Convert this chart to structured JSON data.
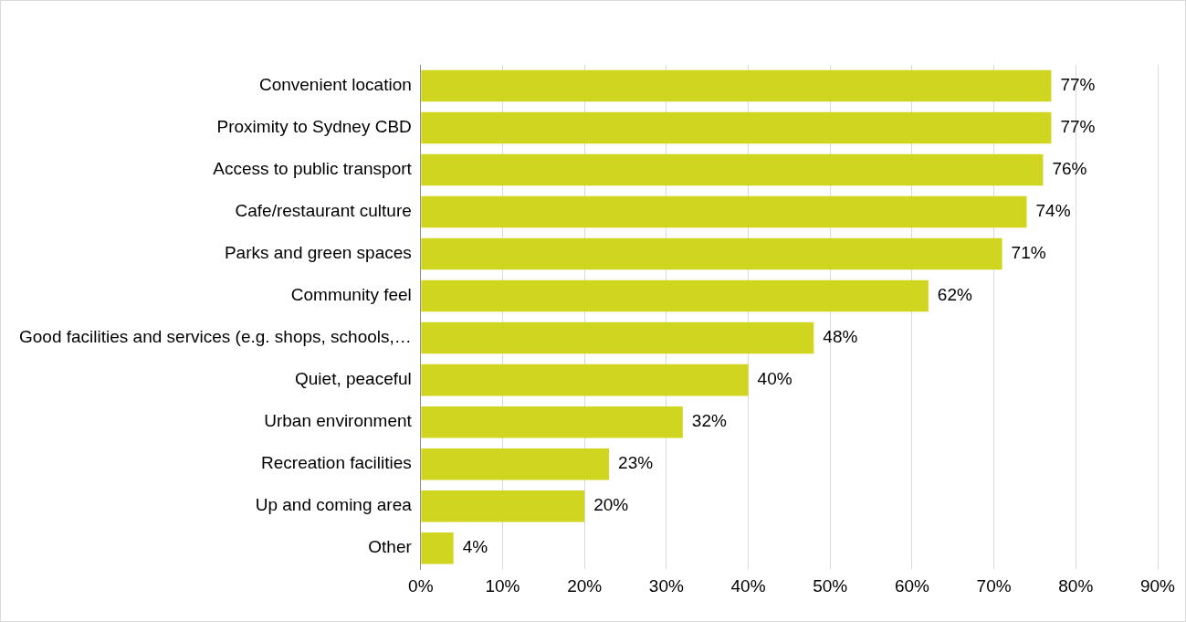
{
  "chart_data": {
    "type": "bar",
    "orientation": "horizontal",
    "categories": [
      "Convenient location",
      "Proximity to Sydney CBD",
      "Access to public transport",
      "Cafe/restaurant culture",
      "Parks and green spaces",
      "Community feel",
      "Good facilities and services (e.g. shops, schools,…",
      "Quiet, peaceful",
      "Urban environment",
      "Recreation facilities",
      "Up and coming area",
      "Other"
    ],
    "values": [
      77,
      77,
      76,
      74,
      71,
      62,
      48,
      40,
      32,
      23,
      20,
      4
    ],
    "value_labels": [
      "77%",
      "77%",
      "76%",
      "74%",
      "71%",
      "62%",
      "48%",
      "40%",
      "32%",
      "23%",
      "20%",
      "4%"
    ],
    "color": "#d0d520",
    "xlim": [
      0,
      90
    ],
    "xticks": [
      {
        "value": 0,
        "label": "0%"
      },
      {
        "value": 10,
        "label": "10%"
      },
      {
        "value": 20,
        "label": "20%"
      },
      {
        "value": 30,
        "label": "30%"
      },
      {
        "value": 40,
        "label": "40%"
      },
      {
        "value": 50,
        "label": "50%"
      },
      {
        "value": 60,
        "label": "60%"
      },
      {
        "value": 70,
        "label": "70%"
      },
      {
        "value": 80,
        "label": "80%"
      },
      {
        "value": 90,
        "label": "90%"
      }
    ],
    "grid": "x",
    "legend": false
  }
}
